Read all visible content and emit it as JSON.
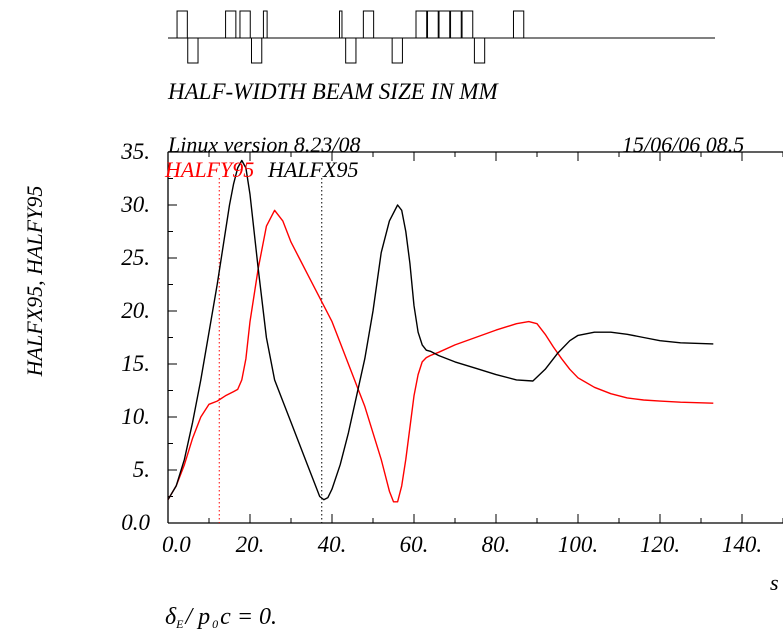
{
  "chart_data": {
    "type": "line",
    "title": "HALF-WIDTH BEAM SIZE IN MM",
    "header_left": "Linux version 8.23/08",
    "header_right": "15/06/06 08.5",
    "ylabel": "HALFX95, HALFY95",
    "xlabel": "s",
    "footnote": "δE/ p0c  =  0.",
    "footnote_parts": {
      "delta": "δ",
      "sub_e": "E",
      "slash": "/ p",
      "sub_0": "0",
      "rest": "c  =  0."
    },
    "xlim": [
      0,
      150
    ],
    "ylim": [
      0,
      35
    ],
    "xticks": [
      {
        "v": 0,
        "label": "0.0"
      },
      {
        "v": 20,
        "label": "20."
      },
      {
        "v": 40,
        "label": "40."
      },
      {
        "v": 60,
        "label": "60."
      },
      {
        "v": 80,
        "label": "80."
      },
      {
        "v": 100,
        "label": "100."
      },
      {
        "v": 120,
        "label": "120."
      },
      {
        "v": 140,
        "label": "140."
      }
    ],
    "yticks": [
      {
        "v": 0,
        "label": "0.0"
      },
      {
        "v": 5,
        "label": "5."
      },
      {
        "v": 10,
        "label": "10."
      },
      {
        "v": 15,
        "label": "15."
      },
      {
        "v": 20,
        "label": "20."
      },
      {
        "v": 25,
        "label": "25."
      },
      {
        "v": 30,
        "label": "30."
      },
      {
        "v": 35,
        "label": "35."
      }
    ],
    "series": [
      {
        "name": "HALFY95",
        "color": "#ff0000",
        "marker_x": 12.5,
        "x": [
          0,
          2,
          4,
          6,
          8,
          10,
          12,
          14,
          16,
          17,
          18,
          19,
          20,
          22,
          24,
          26,
          28,
          30,
          32,
          34,
          36,
          38,
          40,
          42,
          44,
          46,
          48,
          50,
          52,
          54,
          55,
          56,
          57,
          58,
          59,
          60,
          61,
          62,
          63,
          64,
          66,
          70,
          75,
          80,
          85,
          88,
          90,
          92,
          94,
          96,
          98,
          100,
          104,
          108,
          112,
          116,
          120,
          125,
          133
        ],
        "y": [
          2.2,
          3.5,
          5.5,
          8.0,
          10.0,
          11.2,
          11.5,
          12.0,
          12.4,
          12.6,
          13.5,
          15.5,
          19.0,
          24.0,
          28.0,
          29.5,
          28.5,
          26.5,
          25.0,
          23.5,
          22.0,
          20.5,
          19.0,
          17.0,
          15.0,
          13.0,
          11.0,
          8.5,
          6.0,
          3.0,
          2.0,
          2.0,
          3.5,
          6.0,
          9.0,
          12.0,
          14.0,
          15.2,
          15.6,
          15.8,
          16.1,
          16.8,
          17.5,
          18.2,
          18.8,
          19.0,
          18.8,
          17.8,
          16.6,
          15.5,
          14.5,
          13.7,
          12.8,
          12.2,
          11.8,
          11.6,
          11.5,
          11.4,
          11.3
        ]
      },
      {
        "name": "HALFX95",
        "color": "#000000",
        "marker_x": 37.5,
        "x": [
          0,
          2,
          4,
          6,
          8,
          10,
          12,
          14,
          15,
          16,
          17,
          18,
          19,
          20,
          22,
          24,
          26,
          28,
          30,
          32,
          34,
          36,
          37,
          38,
          39,
          40,
          42,
          44,
          46,
          48,
          50,
          52,
          54,
          56,
          57,
          58,
          59,
          60,
          61,
          62,
          63,
          64,
          66,
          70,
          75,
          80,
          85,
          89,
          92,
          95,
          98,
          100,
          104,
          108,
          112,
          116,
          120,
          125,
          133
        ],
        "y": [
          2.2,
          3.5,
          6.0,
          9.5,
          13.5,
          18.0,
          22.5,
          27.5,
          30.0,
          32.0,
          33.5,
          34.2,
          33.5,
          31.0,
          24.0,
          17.5,
          13.5,
          11.5,
          9.5,
          7.5,
          5.5,
          3.5,
          2.5,
          2.2,
          2.4,
          3.2,
          5.5,
          8.5,
          12.0,
          15.5,
          20.0,
          25.5,
          28.5,
          30.0,
          29.5,
          27.5,
          24.5,
          20.5,
          18.0,
          16.8,
          16.3,
          16.2,
          15.8,
          15.2,
          14.6,
          14.0,
          13.5,
          13.4,
          14.5,
          16.0,
          17.2,
          17.7,
          18.0,
          18.0,
          17.8,
          17.5,
          17.2,
          17.0,
          16.9
        ]
      }
    ],
    "lattice": {
      "xlim": [
        0,
        133
      ],
      "elements": [
        {
          "s": 2.2,
          "w": 2.5,
          "side": "up"
        },
        {
          "s": 4.8,
          "w": 2.5,
          "side": "down"
        },
        {
          "s": 14.0,
          "w": 2.5,
          "side": "up"
        },
        {
          "s": 17.5,
          "w": 2.5,
          "side": "up"
        },
        {
          "s": 20.3,
          "w": 2.5,
          "side": "down"
        },
        {
          "s": 23.2,
          "w": 0.9,
          "side": "up"
        },
        {
          "s": 41.7,
          "w": 0.6,
          "side": "up"
        },
        {
          "s": 43.2,
          "w": 2.5,
          "side": "down"
        },
        {
          "s": 47.5,
          "w": 2.5,
          "side": "up"
        },
        {
          "s": 54.5,
          "w": 2.5,
          "side": "down"
        },
        {
          "s": 60.3,
          "w": 2.6,
          "side": "up"
        },
        {
          "s": 63.1,
          "w": 2.6,
          "side": "up"
        },
        {
          "s": 65.9,
          "w": 2.6,
          "side": "up"
        },
        {
          "s": 68.7,
          "w": 2.6,
          "side": "up"
        },
        {
          "s": 71.5,
          "w": 2.6,
          "side": "up"
        },
        {
          "s": 74.5,
          "w": 2.5,
          "side": "down"
        },
        {
          "s": 84.0,
          "w": 2.5,
          "side": "up"
        }
      ]
    }
  }
}
